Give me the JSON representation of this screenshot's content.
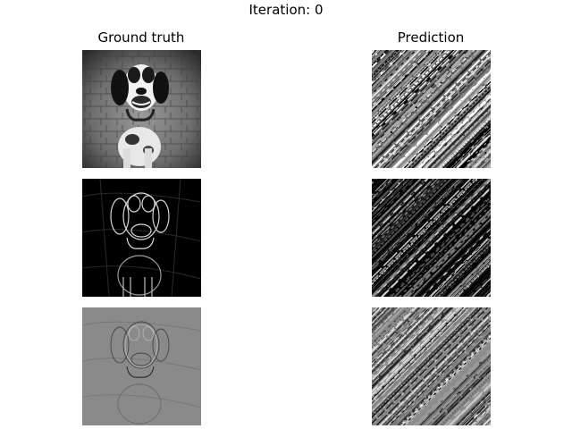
{
  "figure": {
    "suptitle": "Iteration: 0",
    "columns": [
      {
        "title": "Ground truth"
      },
      {
        "title": "Prediction"
      }
    ]
  }
}
